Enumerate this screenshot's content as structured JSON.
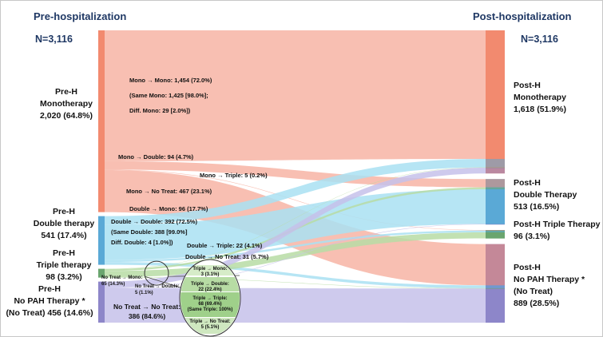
{
  "headers": {
    "pre": "Pre-hospitalization",
    "post": "Post-hospitalization"
  },
  "totals": {
    "pre": "N=3,116",
    "post": "N=3,116"
  },
  "pre_nodes": {
    "mono": [
      "Pre-H",
      "Monotherapy",
      "2,020 (64.8%)"
    ],
    "double": [
      "Pre-H",
      "Double therapy",
      "541 (17.4%)"
    ],
    "triple": [
      "Pre-H",
      "Triple therapy",
      "98 (3.2%)"
    ],
    "notreat": [
      "Pre-H",
      "No PAH Therapy *",
      "(No Treat) 456 (14.6%)"
    ]
  },
  "post_nodes": {
    "mono": [
      "Post-H",
      "Monotherapy",
      "1,618 (51.9%)"
    ],
    "double": [
      "Post-H",
      "Double Therapy",
      "513 (16.5%)"
    ],
    "triple": [
      "Post-H Triple Therapy",
      "96 (3.1%)"
    ],
    "notreat": [
      "Post-H",
      "No PAH Therapy *",
      "(No Treat)",
      "889 (28.5%)"
    ]
  },
  "flow_labels": {
    "mono_mono": [
      "Mono → Mono: 1,454 (72.0%)",
      "(Same Mono: 1,425 [98.0%];",
      "Diff. Mono: 29 [2.0%])"
    ],
    "mono_double": "Mono → Double: 94 (4.7%)",
    "mono_triple": "Mono → Triple:  5 (0.2%)",
    "mono_notreat": "Mono → No Treat: 467 (23.1%)",
    "double_mono": "Double → Mono: 96 (17.7%)",
    "double_double": [
      "Double → Double: 392 (72.5%)",
      "(Same Double: 388 [99.0%]",
      "Diff. Double: 4 [1.0%])"
    ],
    "double_triple": "Double → Triple:   22 (4.1%)",
    "double_notreat": "Double → No Treat: 31 (5.7%)",
    "notreat_mono": [
      "No Treat → Mono:",
      "65 (14.3%)"
    ],
    "notreat_double": [
      "No Treat → Double:",
      "5 (1.1%)"
    ],
    "notreat_notreat": [
      "No Treat → No Treat:",
      "386 (84.6%)"
    ],
    "triple_mono": [
      "Triple → Mono:",
      "3 (3.1%)"
    ],
    "triple_double": [
      "Triple → Double:",
      "22 (22.4%)"
    ],
    "triple_triple": [
      "Triple → Triple:",
      "68 (69.4%)",
      "(Same Triple: 100%)"
    ],
    "triple_notreat": [
      "Triple → No Treat:",
      "5 (5.1%)"
    ]
  },
  "colors": {
    "mono": "#f28a6f",
    "double": "#5aa9d6",
    "triple": "#6aa56e",
    "notreat": "#8d86c9",
    "mono_flow": "#f7b1a1",
    "double_flow": "#a9e0f2",
    "triple_flow": "#b7dca4",
    "notreat_flow": "#c6c1ea",
    "header": "#1f3864"
  },
  "chart_data": {
    "type": "sankey",
    "sources": [
      "Pre-H Monotherapy",
      "Pre-H Double therapy",
      "Pre-H Triple therapy",
      "Pre-H No PAH Therapy"
    ],
    "targets": [
      "Post-H Monotherapy",
      "Post-H Double Therapy",
      "Post-H Triple Therapy",
      "Post-H No PAH Therapy"
    ],
    "source_totals": [
      2020,
      541,
      98,
      456
    ],
    "target_totals": [
      1618,
      513,
      96,
      889
    ],
    "flows": [
      {
        "from": "Mono",
        "to": "Mono",
        "value": 1454
      },
      {
        "from": "Mono",
        "to": "Double",
        "value": 94
      },
      {
        "from": "Mono",
        "to": "Triple",
        "value": 5
      },
      {
        "from": "Mono",
        "to": "No Treat",
        "value": 467
      },
      {
        "from": "Double",
        "to": "Mono",
        "value": 96
      },
      {
        "from": "Double",
        "to": "Double",
        "value": 392
      },
      {
        "from": "Double",
        "to": "Triple",
        "value": 22
      },
      {
        "from": "Double",
        "to": "No Treat",
        "value": 31
      },
      {
        "from": "Triple",
        "to": "Mono",
        "value": 3
      },
      {
        "from": "Triple",
        "to": "Double",
        "value": 22
      },
      {
        "from": "Triple",
        "to": "Triple",
        "value": 68
      },
      {
        "from": "Triple",
        "to": "No Treat",
        "value": 5
      },
      {
        "from": "No Treat",
        "to": "Mono",
        "value": 65
      },
      {
        "from": "No Treat",
        "to": "Double",
        "value": 5
      },
      {
        "from": "No Treat",
        "to": "No Treat",
        "value": 386
      }
    ]
  }
}
